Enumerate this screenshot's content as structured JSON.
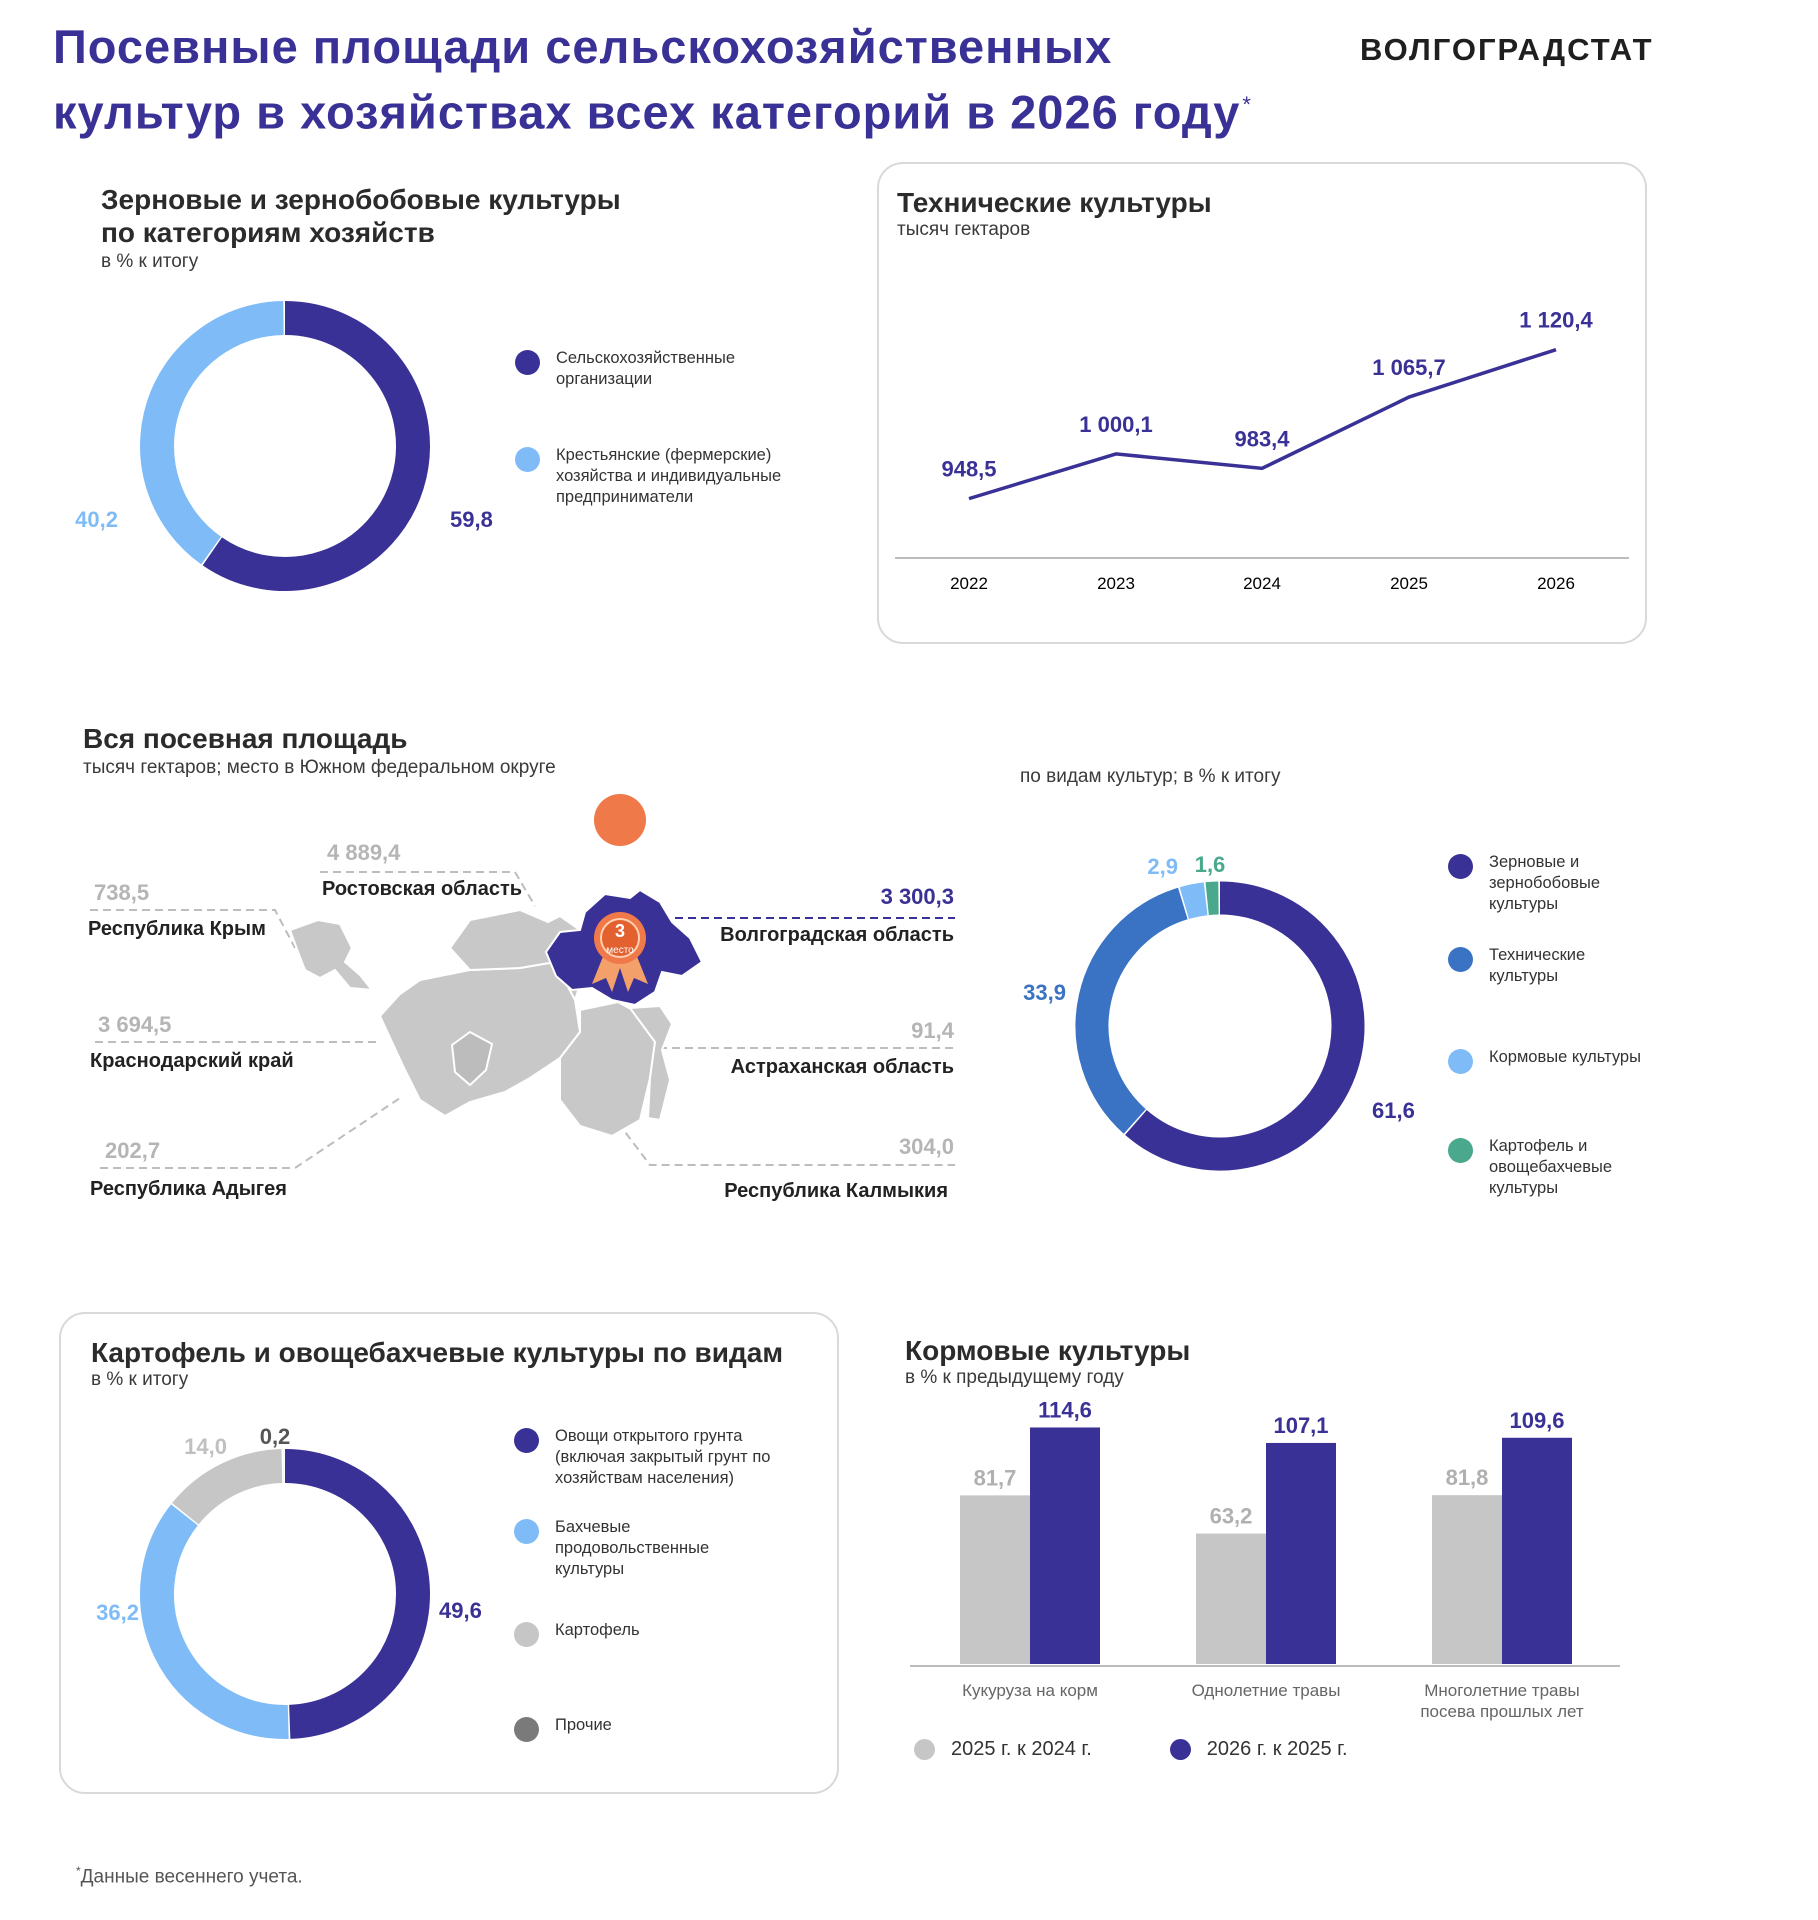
{
  "header": {
    "title_line1": "Посевные площади сельскохозяйственных",
    "title_line2": "культур в хозяйствах всех категорий в 2026 году",
    "title_mark": "*",
    "brand": "ВОЛГОГРАДСТАТ"
  },
  "footnote": {
    "mark": "*",
    "text": "Данные весеннего учета."
  },
  "colors": {
    "dark": "#3a3196",
    "mid": "#3a72c4",
    "light": "#7fbcf7",
    "green": "#4aa88c",
    "grey": "#c6c6c6",
    "darkgrey": "#7a7a7a"
  },
  "chart_data": [
    {
      "id": "grain",
      "type": "pie",
      "title": "Зерновые и зернобобовые культуры по категориям хозяйств",
      "subtitle": "в % к итогу",
      "series": [
        {
          "name": "Сельскохозяйственные организации",
          "value": 59.8,
          "label": "59,8",
          "color": "#3a3196"
        },
        {
          "name": "Крестьянские (фермерские) хозяйства и индивидуальные предприниматели",
          "value": 40.2,
          "label": "40,2",
          "color": "#7fbcf7"
        }
      ]
    },
    {
      "id": "technical",
      "type": "line",
      "title": "Технические культуры",
      "subtitle": "тысяч гектаров",
      "x": [
        "2022",
        "2023",
        "2024",
        "2025",
        "2026"
      ],
      "values": [
        948.5,
        1000.1,
        983.4,
        1065.7,
        1120.4
      ],
      "labels": [
        "948,5",
        "1 000,1",
        "983,4",
        "1 065,7",
        "1 120,4"
      ],
      "ylim": [
        850,
        1150
      ]
    },
    {
      "id": "sown_area",
      "type": "table",
      "title": "Вся посевная площадь",
      "subtitle": "тысяч гектаров; место в Южном федеральном округе",
      "rank": "3",
      "rank_word": "место",
      "regions": [
        {
          "name": "Республика Крым",
          "value": "738,5"
        },
        {
          "name": "Ростовская область",
          "value": "4 889,4"
        },
        {
          "name": "Волгоградская область",
          "value": "3 300,3"
        },
        {
          "name": "Краснодарский край",
          "value": "3 694,5"
        },
        {
          "name": "Астраханская область",
          "value": "91,4"
        },
        {
          "name": "Республика Адыгея",
          "value": "202,7"
        },
        {
          "name": "Республика Калмыкия",
          "value": "304,0"
        }
      ]
    },
    {
      "id": "by_crops",
      "type": "pie",
      "subtitle": "по видам культур; в % к итогу",
      "series": [
        {
          "name": "Зерновые и зернобобовые культуры",
          "value": 61.6,
          "label": "61,6",
          "color": "#3a3196"
        },
        {
          "name": "Технические культуры",
          "value": 33.9,
          "label": "33,9",
          "color": "#3a72c4"
        },
        {
          "name": "Кормовые культуры",
          "value": 2.9,
          "label": "2,9",
          "color": "#7fbcf7"
        },
        {
          "name": "Картофель и овощебахчевые культуры",
          "value": 1.6,
          "label": "1,6",
          "color": "#4aa88c"
        }
      ]
    },
    {
      "id": "potato",
      "type": "pie",
      "title": "Картофель  и овощебахчевые культуры по видам",
      "subtitle": "в % к итогу",
      "series": [
        {
          "name": "Овощи открытого грунта (включая закрытый грунт по хозяйствам населения)",
          "value": 49.6,
          "label": "49,6",
          "color": "#3a3196"
        },
        {
          "name": "Бахчевые продовольственные культуры",
          "value": 36.2,
          "label": "36,2",
          "color": "#7fbcf7"
        },
        {
          "name": "Картофель",
          "value": 14.0,
          "label": "14,0",
          "color": "#c6c6c6"
        },
        {
          "name": "Прочие",
          "value": 0.2,
          "label": "0,2",
          "color": "#7a7a7a"
        }
      ]
    },
    {
      "id": "fodder",
      "type": "bar",
      "title": "Кормовые культуры",
      "subtitle": "в % к предыдущему году",
      "categories": [
        "Кукуруза на  корм",
        "Однолетние травы",
        "Многолетние травы\nпосева прошлых  лет"
      ],
      "series": [
        {
          "name": "2025 г. к 2024 г.",
          "values": [
            81.7,
            63.2,
            81.8
          ],
          "labels": [
            "81,7",
            "63,2",
            "81,8"
          ],
          "color": "#c6c6c6"
        },
        {
          "name": "2026 г. к 2025 г.",
          "values": [
            114.6,
            107.1,
            109.6
          ],
          "labels": [
            "114,6",
            "107,1",
            "109,6"
          ],
          "color": "#3a3196"
        }
      ],
      "ylim": [
        0,
        125
      ]
    }
  ]
}
